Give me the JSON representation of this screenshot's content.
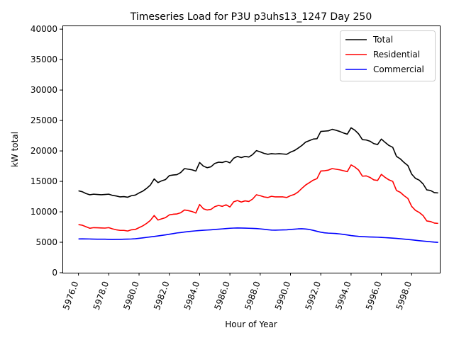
{
  "chart_data": {
    "type": "line",
    "title": "Timeseries Load for P3U p3uhs13_1247  Day 250",
    "xlabel": "Hour of Year",
    "ylabel": "kW total",
    "xlim": [
      5974.94,
      5999.86
    ],
    "ylim": [
      0,
      40600
    ],
    "x_ticks": [
      5976,
      5978,
      5980,
      5982,
      5984,
      5986,
      5988,
      5990,
      5992,
      5994,
      5996,
      5998
    ],
    "x_tick_labels": [
      "5976.0",
      "5978.0",
      "5980.0",
      "5982.0",
      "5984.0",
      "5986.0",
      "5988.0",
      "5990.0",
      "5992.0",
      "5994.0",
      "5996.0",
      "5998.0"
    ],
    "y_ticks": [
      0,
      5000,
      10000,
      15000,
      20000,
      25000,
      30000,
      35000,
      40000
    ],
    "y_tick_labels": [
      "0",
      "5000",
      "10000",
      "15000",
      "20000",
      "25000",
      "30000",
      "35000",
      "40000"
    ],
    "legend_position": "top-right",
    "x": [
      5976.0,
      5976.25,
      5976.5,
      5976.75,
      5977.0,
      5977.25,
      5977.5,
      5977.75,
      5978.0,
      5978.25,
      5978.5,
      5978.75,
      5979.0,
      5979.25,
      5979.5,
      5979.75,
      5980.0,
      5980.25,
      5980.5,
      5980.75,
      5981.0,
      5981.25,
      5981.5,
      5981.75,
      5982.0,
      5982.25,
      5982.5,
      5982.75,
      5983.0,
      5983.25,
      5983.5,
      5983.75,
      5984.0,
      5984.25,
      5984.5,
      5984.75,
      5985.0,
      5985.25,
      5985.5,
      5985.75,
      5986.0,
      5986.25,
      5986.5,
      5986.75,
      5987.0,
      5987.25,
      5987.5,
      5987.75,
      5988.0,
      5988.25,
      5988.5,
      5988.75,
      5989.0,
      5989.25,
      5989.5,
      5989.75,
      5990.0,
      5990.25,
      5990.5,
      5990.75,
      5991.0,
      5991.25,
      5991.5,
      5991.75,
      5992.0,
      5992.25,
      5992.5,
      5992.75,
      5993.0,
      5993.25,
      5993.5,
      5993.75,
      5994.0,
      5994.25,
      5994.5,
      5994.75,
      5995.0,
      5995.25,
      5995.5,
      5995.75,
      5996.0,
      5996.25,
      5996.5,
      5996.75,
      5997.0,
      5997.25,
      5997.5,
      5997.75,
      5998.0,
      5998.25,
      5998.5,
      5998.75,
      5999.0,
      5999.25,
      5999.5,
      5999.75
    ],
    "series": [
      {
        "name": "Total",
        "color": "#000000",
        "values": [
          13450,
          13300,
          13000,
          12800,
          12900,
          12850,
          12800,
          12850,
          12900,
          12700,
          12600,
          12450,
          12500,
          12400,
          12650,
          12750,
          13100,
          13400,
          13850,
          14400,
          15400,
          14800,
          15100,
          15300,
          15950,
          16050,
          16100,
          16450,
          17100,
          17000,
          16900,
          16700,
          18100,
          17500,
          17250,
          17400,
          17950,
          18150,
          18100,
          18300,
          18050,
          18800,
          19100,
          18900,
          19100,
          19000,
          19400,
          20050,
          19850,
          19600,
          19450,
          19550,
          19500,
          19550,
          19500,
          19450,
          19800,
          20050,
          20450,
          20900,
          21450,
          21700,
          21950,
          22000,
          23200,
          23250,
          23300,
          23550,
          23400,
          23200,
          22950,
          22750,
          23800,
          23400,
          22800,
          21850,
          21800,
          21600,
          21200,
          21050,
          21950,
          21400,
          20900,
          20600,
          19100,
          18700,
          18100,
          17600,
          16200,
          15500,
          15200,
          14600,
          13600,
          13500,
          13150,
          13100
        ]
      },
      {
        "name": "Residential",
        "color": "#ff0000",
        "values": [
          7900,
          7800,
          7550,
          7300,
          7400,
          7380,
          7350,
          7330,
          7400,
          7200,
          7050,
          6950,
          6950,
          6850,
          7050,
          7100,
          7400,
          7700,
          8100,
          8600,
          9400,
          8650,
          8850,
          9050,
          9500,
          9600,
          9650,
          9850,
          10300,
          10200,
          10050,
          9800,
          11200,
          10500,
          10300,
          10400,
          10850,
          11050,
          10900,
          11150,
          10800,
          11650,
          11850,
          11600,
          11800,
          11700,
          12100,
          12800,
          12650,
          12450,
          12350,
          12550,
          12450,
          12450,
          12450,
          12350,
          12650,
          12850,
          13250,
          13850,
          14400,
          14800,
          15200,
          15450,
          16700,
          16750,
          16850,
          17100,
          17000,
          16900,
          16750,
          16600,
          17700,
          17350,
          16850,
          15850,
          15900,
          15650,
          15250,
          15150,
          16150,
          15650,
          15250,
          15000,
          13500,
          13200,
          12650,
          12200,
          10900,
          10250,
          9900,
          9400,
          8500,
          8400,
          8150,
          8100
        ]
      },
      {
        "name": "Commercial",
        "color": "#0000ff",
        "values": [
          5550,
          5560,
          5550,
          5540,
          5520,
          5510,
          5510,
          5500,
          5480,
          5460,
          5470,
          5480,
          5500,
          5520,
          5540,
          5580,
          5650,
          5720,
          5800,
          5880,
          5960,
          6040,
          6130,
          6220,
          6320,
          6420,
          6530,
          6600,
          6680,
          6750,
          6820,
          6880,
          6930,
          6970,
          7010,
          7050,
          7100,
          7150,
          7200,
          7250,
          7300,
          7330,
          7350,
          7340,
          7320,
          7300,
          7280,
          7250,
          7200,
          7130,
          7060,
          7000,
          6990,
          7010,
          7030,
          7050,
          7100,
          7150,
          7200,
          7220,
          7180,
          7100,
          6960,
          6800,
          6650,
          6550,
          6500,
          6470,
          6430,
          6370,
          6290,
          6200,
          6100,
          6030,
          5970,
          5930,
          5900,
          5870,
          5850,
          5830,
          5800,
          5760,
          5720,
          5680,
          5630,
          5580,
          5520,
          5460,
          5400,
          5330,
          5260,
          5200,
          5140,
          5080,
          5020,
          4980
        ]
      }
    ]
  }
}
